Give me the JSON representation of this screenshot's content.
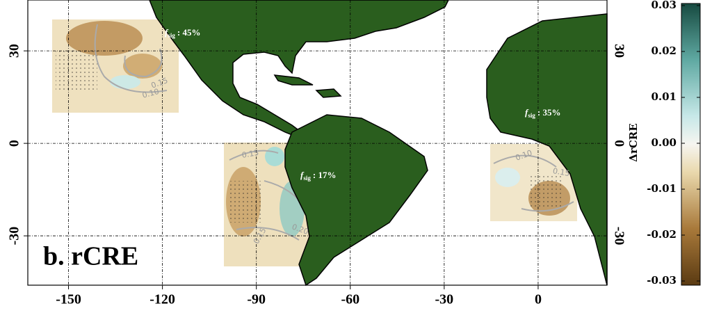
{
  "panel_label": "b. rCRE",
  "map": {
    "xlim": [
      -163,
      22
    ],
    "ylim": [
      -46,
      46.5
    ],
    "xticks": [
      -150,
      -120,
      -90,
      -60,
      -30,
      0
    ],
    "yticks": [
      -30,
      0,
      30
    ],
    "grid": true
  },
  "annotations": [
    {
      "symbol": "f",
      "subscript": "sig",
      "text": ": 45%"
    },
    {
      "symbol": "f",
      "subscript": "sig",
      "text": ": 17%"
    },
    {
      "symbol": "f",
      "subscript": "sig",
      "text": ": 35%"
    }
  ],
  "contour_labels": [
    "0.15",
    "0.10",
    "0.15",
    "0.20",
    "0.15",
    "0.10",
    "0.15"
  ],
  "colorbar": {
    "label": "ΔrCRE",
    "lim": [
      -0.03,
      0.03
    ],
    "ticks": [
      -0.03,
      -0.02,
      -0.01,
      {
        "value": 0,
        "label": "0.00"
      },
      0.01,
      0.02,
      0.03
    ]
  }
}
